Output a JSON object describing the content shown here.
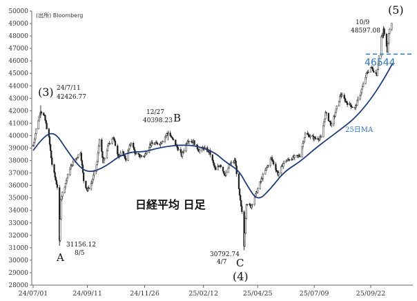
{
  "source_label": "(出所) Bloomberg",
  "colors": {
    "ma_line": "#1f3a7a",
    "level_line": "#2e75b6",
    "candle": "#222222",
    "axis": "#666666"
  },
  "chart_data": {
    "type": "candlestick",
    "title": "日経平均 日足",
    "ylim": [
      28000,
      50000
    ],
    "yticks": [
      28000,
      29000,
      30000,
      31000,
      32000,
      33000,
      34000,
      35000,
      36000,
      37000,
      38000,
      39000,
      40000,
      41000,
      42000,
      43000,
      44000,
      45000,
      46000,
      47000,
      48000,
      49000,
      50000
    ],
    "xticks": [
      "24/07/01",
      "24/09/11",
      "24/11/26",
      "25/02/12",
      "25/04/25",
      "25/07/09",
      "25/09/22"
    ],
    "close_series": [
      [
        "24/07/01",
        39200
      ],
      [
        "24/07/05",
        40500
      ],
      [
        "24/07/11",
        42000
      ],
      [
        "24/07/16",
        41500
      ],
      [
        "24/07/22",
        39800
      ],
      [
        "24/07/26",
        37700
      ],
      [
        "24/08/02",
        35900
      ],
      [
        "24/08/05",
        31458
      ],
      [
        "24/08/07",
        35000
      ],
      [
        "24/08/13",
        36200
      ],
      [
        "24/08/19",
        37400
      ],
      [
        "24/08/26",
        38100
      ],
      [
        "24/09/02",
        38700
      ],
      [
        "24/09/06",
        36400
      ],
      [
        "24/09/11",
        35600
      ],
      [
        "24/09/17",
        36300
      ],
      [
        "24/09/24",
        37900
      ],
      [
        "24/09/27",
        39800
      ],
      [
        "24/10/02",
        37800
      ],
      [
        "24/10/09",
        39300
      ],
      [
        "24/10/15",
        39900
      ],
      [
        "24/10/22",
        38400
      ],
      [
        "24/10/28",
        38600
      ],
      [
        "24/11/01",
        38100
      ],
      [
        "24/11/08",
        39500
      ],
      [
        "24/11/14",
        38500
      ],
      [
        "24/11/20",
        38350
      ],
      [
        "24/11/26",
        38400
      ],
      [
        "24/12/03",
        39300
      ],
      [
        "24/12/10",
        39350
      ],
      [
        "24/12/17",
        39400
      ],
      [
        "24/12/27",
        40280
      ],
      [
        "25/01/06",
        39300
      ],
      [
        "25/01/14",
        38400
      ],
      [
        "25/01/22",
        39650
      ],
      [
        "25/01/30",
        39500
      ],
      [
        "25/02/06",
        38800
      ],
      [
        "25/02/12",
        39000
      ],
      [
        "25/02/20",
        38700
      ],
      [
        "25/02/28",
        37200
      ],
      [
        "25/03/06",
        37700
      ],
      [
        "25/03/13",
        36800
      ],
      [
        "25/03/19",
        37700
      ],
      [
        "25/03/26",
        38000
      ],
      [
        "25/03/31",
        35600
      ],
      [
        "25/04/04",
        33800
      ],
      [
        "25/04/07",
        31136
      ],
      [
        "25/04/10",
        34600
      ],
      [
        "25/04/16",
        34300
      ],
      [
        "25/04/25",
        35700
      ],
      [
        "25/05/02",
        36800
      ],
      [
        "25/05/13",
        38200
      ],
      [
        "25/05/22",
        36900
      ],
      [
        "25/05/30",
        37900
      ],
      [
        "25/06/10",
        38200
      ],
      [
        "25/06/20",
        38400
      ],
      [
        "25/06/27",
        40150
      ],
      [
        "25/07/09",
        39800
      ],
      [
        "25/07/18",
        39800
      ],
      [
        "25/07/24",
        41800
      ],
      [
        "25/08/01",
        40800
      ],
      [
        "25/08/13",
        43300
      ],
      [
        "25/08/22",
        42600
      ],
      [
        "25/09/01",
        42200
      ],
      [
        "25/09/09",
        43500
      ],
      [
        "25/09/16",
        44900
      ],
      [
        "25/09/22",
        45500
      ],
      [
        "25/09/30",
        44900
      ],
      [
        "25/10/06",
        47900
      ],
      [
        "25/10/08",
        48000
      ],
      [
        "25/10/09",
        48580
      ],
      [
        "25/10/10",
        48100
      ],
      [
        "25/10/14",
        46800
      ],
      [
        "25/10/16",
        48300
      ],
      [
        "25/10/21",
        49300
      ]
    ],
    "ma_series_name": "25日MA",
    "ma25_series": [
      [
        "24/07/01",
        38800
      ],
      [
        "24/07/11",
        39600
      ],
      [
        "24/07/22",
        40200
      ],
      [
        "24/08/01",
        40100
      ],
      [
        "24/08/13",
        39000
      ],
      [
        "24/08/26",
        37900
      ],
      [
        "24/09/06",
        37200
      ],
      [
        "24/09/17",
        37100
      ],
      [
        "24/09/27",
        37300
      ],
      [
        "24/10/09",
        37700
      ],
      [
        "24/10/22",
        38300
      ],
      [
        "24/11/08",
        38700
      ],
      [
        "24/11/26",
        38700
      ],
      [
        "24/12/10",
        38950
      ],
      [
        "24/12/27",
        39150
      ],
      [
        "25/01/14",
        39250
      ],
      [
        "25/01/30",
        39200
      ],
      [
        "25/02/12",
        39000
      ],
      [
        "25/02/28",
        38600
      ],
      [
        "25/03/13",
        37900
      ],
      [
        "25/03/31",
        37200
      ],
      [
        "25/04/10",
        36100
      ],
      [
        "25/04/25",
        34700
      ],
      [
        "25/05/13",
        35800
      ],
      [
        "25/05/30",
        37100
      ],
      [
        "25/06/20",
        37900
      ],
      [
        "25/07/09",
        38900
      ],
      [
        "25/07/24",
        39600
      ],
      [
        "25/08/13",
        40500
      ],
      [
        "25/09/01",
        41400
      ],
      [
        "25/09/22",
        42900
      ],
      [
        "25/10/09",
        44500
      ],
      [
        "25/10/21",
        45800
      ]
    ],
    "horizontal_line": {
      "value": 46544,
      "label": "46544"
    },
    "annotations": [
      {
        "wave": "(3)",
        "letter": "",
        "date_label": "24/7/11",
        "value_label": "42426.77",
        "date": "24/07/11",
        "value": 42426.77
      },
      {
        "wave": "",
        "letter": "A",
        "date_label": "8/5",
        "value_label": "31156.12",
        "date": "24/08/05",
        "value": 31156.12
      },
      {
        "wave": "",
        "letter": "B",
        "date_label": "12/27",
        "value_label": "40398.23",
        "date": "24/12/27",
        "value": 40398.23
      },
      {
        "wave": "(4)",
        "letter": "C",
        "date_label": "4/7",
        "value_label": "30792.74",
        "date": "25/04/07",
        "value": 30792.74
      },
      {
        "wave": "(5)",
        "letter": "",
        "date_label": "10/9",
        "value_label": "48597.08",
        "date": "25/10/09",
        "value": 48597.08
      }
    ]
  },
  "labels": {
    "wave3": "(3)",
    "wave4": "(4)",
    "wave5": "(5)",
    "A": "A",
    "B": "B",
    "C": "C",
    "ann3_date": "24/7/11",
    "ann3_val": "42426.77",
    "annA_val": "31156.12",
    "annA_date": "8/5",
    "annB_date": "12/27",
    "annB_val": "40398.23",
    "annC_val": "30792.74",
    "annC_date": "4/7",
    "ann5_date": "10/9",
    "ann5_val": "48597.08"
  }
}
